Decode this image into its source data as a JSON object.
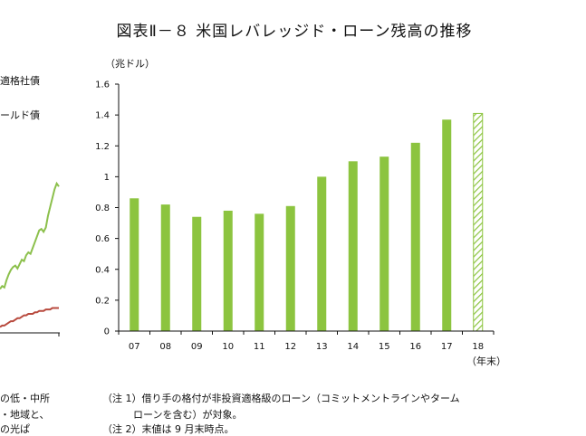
{
  "title": "図表Ⅱ－８ 米国レバレッジド・ローン残高の推移",
  "left_panel": {
    "legend": [
      "適格社債",
      "ールド債"
    ],
    "notes": [
      "の低・中所",
      "・地域と、",
      "の光ぱ"
    ],
    "series": [
      {
        "name": "適格社債",
        "color": "#8cc04c",
        "values": [
          0.3,
          0.32,
          0.31,
          0.36,
          0.4,
          0.43,
          0.45,
          0.46,
          0.44,
          0.47,
          0.5,
          0.49,
          0.53,
          0.55,
          0.54,
          0.58,
          0.62,
          0.66,
          0.7,
          0.71,
          0.69,
          0.72,
          0.8,
          0.86,
          0.92,
          0.98,
          1.02,
          1.0
        ]
      },
      {
        "name": "ールド債",
        "color": "#b84a3e",
        "values": [
          0.04,
          0.05,
          0.05,
          0.06,
          0.07,
          0.08,
          0.08,
          0.09,
          0.1,
          0.1,
          0.11,
          0.12,
          0.12,
          0.13,
          0.13,
          0.13,
          0.14,
          0.14,
          0.15,
          0.15,
          0.15,
          0.16,
          0.16,
          0.16,
          0.17,
          0.17,
          0.17,
          0.17
        ]
      }
    ]
  },
  "chart_data": {
    "type": "bar",
    "title": "図表Ⅱ－８ 米国レバレッジド・ローン残高の推移",
    "ylabel": "（兆ドル）",
    "xlabel": "（年末）",
    "categories": [
      "07",
      "08",
      "09",
      "10",
      "11",
      "12",
      "13",
      "14",
      "15",
      "16",
      "17",
      "18"
    ],
    "values": [
      0.86,
      0.82,
      0.74,
      0.78,
      0.76,
      0.81,
      1.0,
      1.1,
      1.13,
      1.22,
      1.37,
      1.41
    ],
    "ylim": [
      0,
      1.6
    ],
    "yticks": [
      0,
      0.2,
      0.4,
      0.6,
      0.8,
      1,
      1.2,
      1.4,
      1.6
    ],
    "ytick_labels": [
      "0",
      "0.2",
      "0.4",
      "0.6",
      "0.8",
      "1",
      "1.2",
      "1.4",
      "1.6"
    ],
    "bar_color": "#8cc43f",
    "hatched_last": true,
    "grid": false
  },
  "notes": [
    "（注 1）借り手の格付が非投資適格級のローン（コミットメントラインやターム",
    "ローンを含む）が対象。",
    "（注 2）末値は 9 月末時点。"
  ]
}
